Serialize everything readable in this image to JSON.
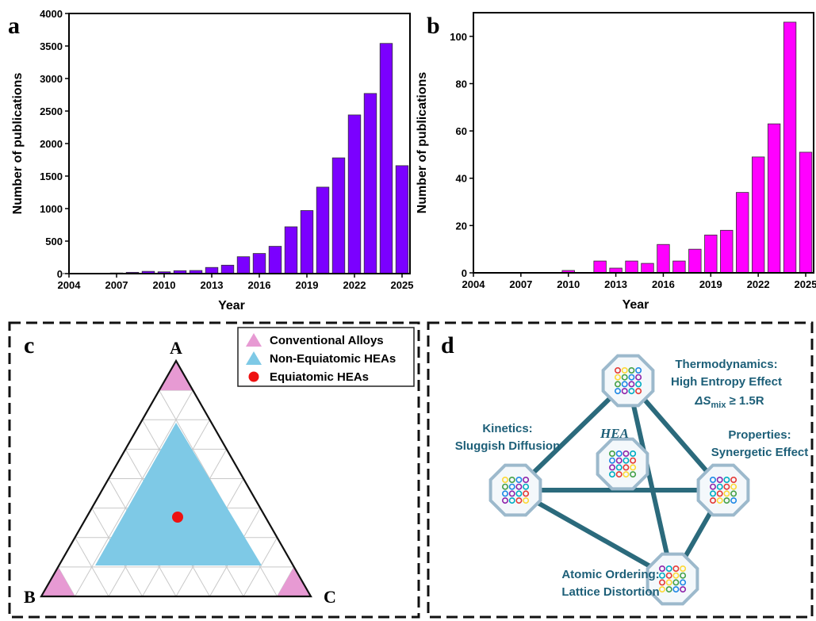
{
  "chart_data": [
    {
      "type": "bar",
      "panel_label": "a",
      "x": [
        2004,
        2005,
        2006,
        2007,
        2008,
        2009,
        2010,
        2011,
        2012,
        2013,
        2014,
        2015,
        2016,
        2017,
        2018,
        2019,
        2020,
        2021,
        2022,
        2023,
        2024,
        2025
      ],
      "values": [
        2,
        4,
        6,
        10,
        20,
        35,
        28,
        45,
        48,
        95,
        130,
        260,
        310,
        420,
        720,
        970,
        1330,
        1780,
        2440,
        2770,
        3540,
        1660
      ],
      "color": "#7b00ff",
      "xlabel": "Year",
      "ylabel": "Number of publications",
      "xlim": [
        2004,
        2025.5
      ],
      "ylim": [
        0,
        4000
      ],
      "xticks": [
        2004,
        2007,
        2010,
        2013,
        2016,
        2019,
        2022,
        2025
      ],
      "yticks": [
        0,
        500,
        1000,
        1500,
        2000,
        2500,
        3000,
        3500,
        4000
      ]
    },
    {
      "type": "bar",
      "panel_label": "b",
      "x": [
        2004,
        2005,
        2006,
        2007,
        2008,
        2009,
        2010,
        2011,
        2012,
        2013,
        2014,
        2015,
        2016,
        2017,
        2018,
        2019,
        2020,
        2021,
        2022,
        2023,
        2024,
        2025
      ],
      "values": [
        0,
        0,
        0,
        0,
        0,
        0,
        1,
        0,
        5,
        2,
        5,
        4,
        12,
        5,
        10,
        16,
        18,
        34,
        49,
        63,
        106,
        51
      ],
      "color": "#ff00ff",
      "xlabel": "Year",
      "ylabel": "Number of publications",
      "xlim": [
        2004,
        2025.5
      ],
      "ylim": [
        0,
        110
      ],
      "xticks": [
        2004,
        2007,
        2010,
        2013,
        2016,
        2019,
        2022,
        2025
      ],
      "yticks": [
        0,
        20,
        40,
        60,
        80,
        100
      ]
    }
  ],
  "ternary": {
    "panel_label": "c",
    "vertices": [
      "A",
      "B",
      "C"
    ],
    "legend": [
      "Conventional Alloys",
      "Non-Equiatomic HEAs",
      "Equiatomic HEAs"
    ]
  },
  "diagram": {
    "panel_label": "d",
    "thermodynamics": {
      "title": "Thermodynamics:",
      "subtitle": "High Entropy Effect",
      "symbol": "ΔS",
      "subscript": "mix",
      "relation": "≥ 1.5R"
    },
    "kinetics": {
      "title": "Kinetics:",
      "subtitle": "Sluggish Diffusion"
    },
    "center": "HEA",
    "properties": {
      "title": "Properties:",
      "subtitle": "Synergetic Effect"
    },
    "ordering": {
      "title": "Atomic Ordering:",
      "subtitle": "Lattice Distortion"
    }
  }
}
